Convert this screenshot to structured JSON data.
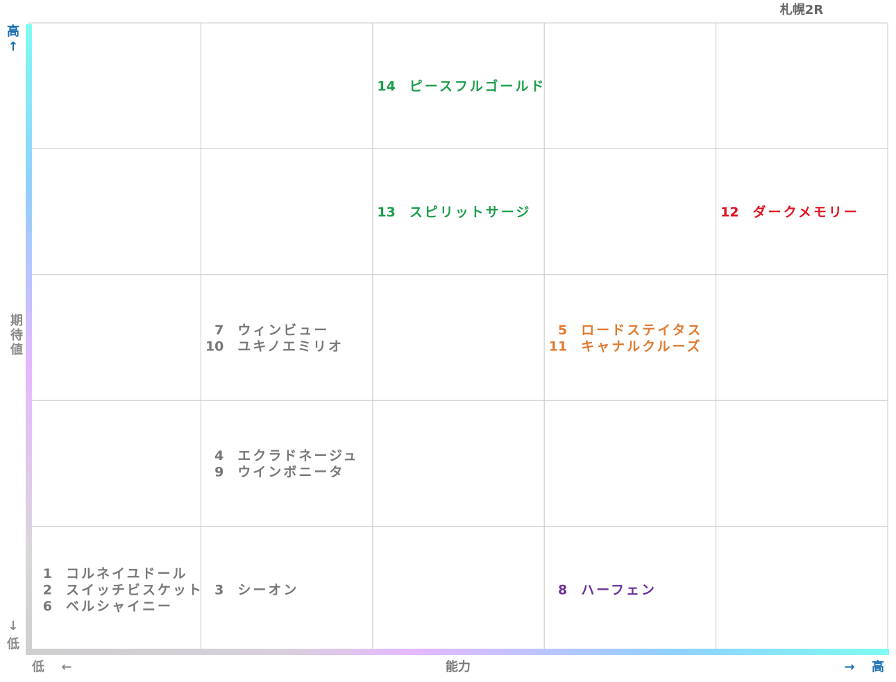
{
  "header": {
    "title": "札幌2R"
  },
  "y_axis": {
    "label": "期待値",
    "high": "高",
    "high_arrow": "↑",
    "low_arrow": "↓",
    "low": "低",
    "high_color": "#1a6fb0",
    "low_color": "#888888"
  },
  "x_axis": {
    "label": "能力",
    "low": "低",
    "low_arrow": "←",
    "high_arrow": "→",
    "high": "高",
    "high_color": "#1a6fb0",
    "low_color": "#888888"
  },
  "grid": {
    "rows": [
      [
        [],
        [],
        [
          {
            "number": 14,
            "name": "ピースフルゴールド",
            "color": "#1a9e4a"
          }
        ],
        [],
        []
      ],
      [
        [],
        [],
        [
          {
            "number": 13,
            "name": "スピリットサージ",
            "color": "#1a9e4a"
          }
        ],
        [],
        [
          {
            "number": 12,
            "name": "ダークメモリー",
            "color": "#e0101e"
          }
        ]
      ],
      [
        [],
        [
          {
            "number": 7,
            "name": "ウィンビュー",
            "color": "#777777"
          },
          {
            "number": 10,
            "name": "ユキノエミリオ",
            "color": "#777777"
          }
        ],
        [],
        [
          {
            "number": 5,
            "name": "ロードステイタス",
            "color": "#e07a30"
          },
          {
            "number": 11,
            "name": "キャナルクルーズ",
            "color": "#e07a30"
          }
        ],
        []
      ],
      [
        [],
        [
          {
            "number": 4,
            "name": "エクラドネージュ",
            "color": "#777777"
          },
          {
            "number": 9,
            "name": "ウインボニータ",
            "color": "#777777"
          }
        ],
        [],
        [],
        []
      ],
      [
        [
          {
            "number": 1,
            "name": "コルネイユドール",
            "color": "#777777"
          },
          {
            "number": 2,
            "name": "スイッチビスケット",
            "color": "#777777"
          },
          {
            "number": 6,
            "name": "ベルシャイニー",
            "color": "#777777"
          }
        ],
        [
          {
            "number": 3,
            "name": "シーオン",
            "color": "#777777"
          }
        ],
        [],
        [
          {
            "number": 8,
            "name": "ハーフェン",
            "color": "#6a2f9a"
          }
        ],
        []
      ]
    ]
  }
}
